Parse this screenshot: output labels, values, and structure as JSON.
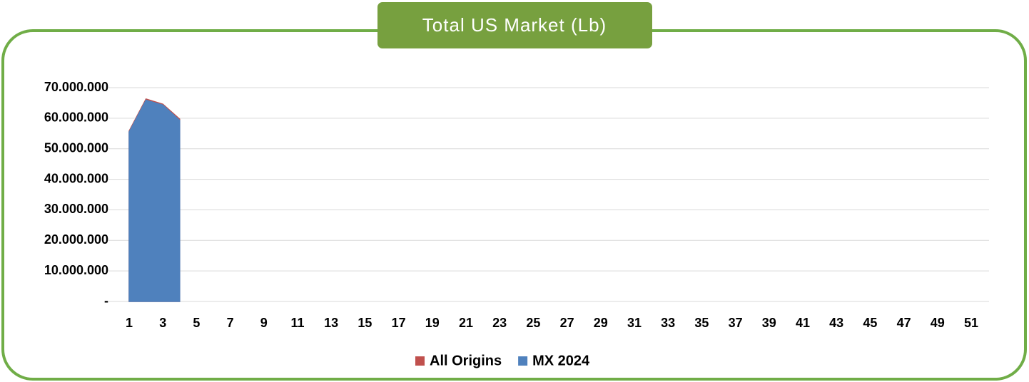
{
  "chart_data": {
    "type": "area",
    "title": "Total US Market (Lb)",
    "categories": [
      "1",
      null,
      "3",
      null,
      "5",
      null,
      "7",
      null,
      "9",
      null,
      "11",
      null,
      "13",
      null,
      "15",
      null,
      "17",
      null,
      "19",
      null,
      "21",
      null,
      "23",
      null,
      "25",
      null,
      "27",
      null,
      "29",
      null,
      "31",
      null,
      "33",
      null,
      "35",
      null,
      "37",
      null,
      "39",
      null,
      "41",
      null,
      "43",
      null,
      "45",
      null,
      "47",
      null,
      "49",
      null,
      "51",
      null
    ],
    "series": [
      {
        "name": "All Origins",
        "color": "#c0504d",
        "values": [
          55800000,
          66300000,
          64600000,
          59700000,
          null,
          null,
          null,
          null,
          null,
          null,
          null,
          null,
          null,
          null,
          null,
          null,
          null,
          null,
          null,
          null,
          null,
          null,
          null,
          null,
          null,
          null,
          null,
          null,
          null,
          null,
          null,
          null,
          null,
          null,
          null,
          null,
          null,
          null,
          null,
          null,
          null,
          null,
          null,
          null,
          null,
          null,
          null,
          null,
          null,
          null,
          null,
          null
        ]
      },
      {
        "name": "MX 2024",
        "color": "#4f81bd",
        "values": [
          55500000,
          65900000,
          64300000,
          59300000,
          null,
          null,
          null,
          null,
          null,
          null,
          null,
          null,
          null,
          null,
          null,
          null,
          null,
          null,
          null,
          null,
          null,
          null,
          null,
          null,
          null,
          null,
          null,
          null,
          null,
          null,
          null,
          null,
          null,
          null,
          null,
          null,
          null,
          null,
          null,
          null,
          null,
          null,
          null,
          null,
          null,
          null,
          null,
          null,
          null,
          null,
          null,
          null
        ]
      }
    ],
    "ylim": [
      0,
      70000000
    ],
    "yticks": [
      {
        "value": 0,
        "label": "-"
      },
      {
        "value": 10000000,
        "label": "10.000.000"
      },
      {
        "value": 20000000,
        "label": "20.000.000"
      },
      {
        "value": 30000000,
        "label": "30.000.000"
      },
      {
        "value": 40000000,
        "label": "40.000.000"
      },
      {
        "value": 50000000,
        "label": "50.000.000"
      },
      {
        "value": 60000000,
        "label": "60.000.000"
      },
      {
        "value": 70000000,
        "label": "70.000.000"
      }
    ],
    "grid": true,
    "legend": "bottom"
  }
}
